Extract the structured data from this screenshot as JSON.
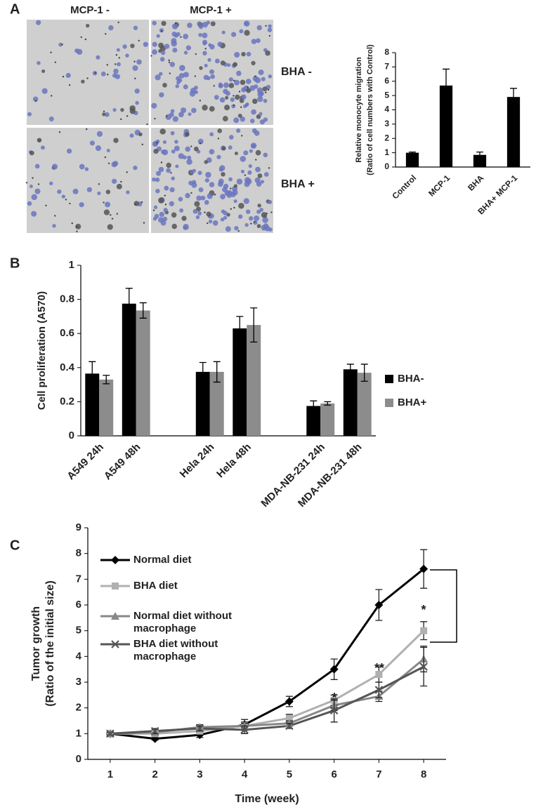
{
  "panels": {
    "labels": [
      "A",
      "B",
      "C"
    ]
  },
  "micrograph": {
    "columns": [
      "MCP-1 -",
      "MCP-1 +"
    ],
    "rows": [
      "BHA -",
      "BHA +"
    ]
  },
  "chart_data": [
    {
      "type": "bar",
      "ylabel": [
        "Relative monocyte migration",
        "(Ratio of cell numbers with Control)"
      ],
      "categories": [
        "Control",
        "MCP-1",
        "BHA",
        "BHA+ MCP-1"
      ],
      "values": [
        1.0,
        5.7,
        0.85,
        4.9
      ],
      "errors": [
        0.05,
        1.15,
        0.2,
        0.6
      ],
      "color": "#000000",
      "ylim": [
        0,
        8
      ],
      "yticks": [
        0,
        1,
        2,
        3,
        4,
        5,
        6,
        7,
        8
      ]
    },
    {
      "type": "bar",
      "ylabel": [
        "Cell proliferation (A570)"
      ],
      "categories": [
        "A549 24h",
        "A549 48h",
        null,
        "Hela 24h",
        "Hela 48h",
        null,
        "MDA-NB-231 24h",
        "MDA-NB-231 48h"
      ],
      "series": [
        {
          "name": "BHA-",
          "color": "#000000",
          "values": [
            0.365,
            0.775,
            null,
            0.375,
            0.63,
            null,
            0.175,
            0.39
          ],
          "errors": [
            0.07,
            0.09,
            null,
            0.055,
            0.07,
            null,
            0.03,
            0.03
          ]
        },
        {
          "name": "BHA+",
          "color": "#8c8c8c",
          "values": [
            0.33,
            0.735,
            null,
            0.375,
            0.65,
            null,
            0.19,
            0.37
          ],
          "errors": [
            0.025,
            0.045,
            null,
            0.06,
            0.1,
            null,
            0.01,
            0.05
          ]
        }
      ],
      "ylim": [
        0,
        1
      ],
      "yticks": [
        0,
        {
          "value": 0.2,
          "label": "0.2"
        },
        {
          "value": 0.4,
          "label": "0.4"
        },
        {
          "value": 0.6,
          "label": "0.6"
        },
        {
          "value": 0.8,
          "label": "0.8"
        },
        1
      ],
      "legend": "right"
    },
    {
      "type": "line",
      "xlabel": "Time (week)",
      "ylabel": [
        "Tumor growth",
        "(Ratio of the initial size)"
      ],
      "x": [
        1,
        2,
        3,
        4,
        5,
        6,
        7,
        8
      ],
      "series": [
        {
          "name": "Normal diet",
          "color": "#000000",
          "marker": "diamond",
          "values": [
            1,
            0.8,
            0.95,
            1.35,
            2.25,
            3.5,
            6.0,
            7.4
          ],
          "errors": [
            0.05,
            0.05,
            0.1,
            0.2,
            0.2,
            0.4,
            0.6,
            0.75
          ]
        },
        {
          "name": "BHA diet",
          "color": "#b0b0b0",
          "marker": "square",
          "values": [
            1,
            1.0,
            1.1,
            1.3,
            1.6,
            2.3,
            3.3,
            5.0
          ],
          "errors": [
            0.05,
            0.1,
            0.1,
            0.15,
            0.15,
            0.2,
            0.3,
            0.35
          ]
        },
        {
          "name": "Normal diet without macrophage",
          "color": "#888888",
          "marker": "triangle",
          "values": [
            1,
            1.05,
            1.25,
            1.3,
            1.4,
            2.1,
            2.45,
            3.9
          ],
          "errors": [
            0.05,
            0.1,
            0.1,
            0.1,
            0.1,
            0.2,
            0.2,
            0.5
          ]
        },
        {
          "name": "BHA diet without macrophage",
          "color": "#555555",
          "marker": "x",
          "values": [
            1,
            1.1,
            1.2,
            1.15,
            1.3,
            1.9,
            2.7,
            3.6
          ],
          "errors": [
            0.05,
            0.1,
            0.1,
            0.15,
            0.1,
            0.45,
            0.3,
            0.75
          ]
        }
      ],
      "annotations": [
        "*",
        "**",
        "*"
      ],
      "xlim": [
        0.5,
        8.5
      ],
      "xticks": [
        1,
        2,
        3,
        4,
        5,
        6,
        7,
        8
      ],
      "ylim": [
        0,
        9
      ],
      "yticks": [
        0,
        1,
        2,
        3,
        4,
        5,
        6,
        7,
        8,
        9
      ]
    }
  ]
}
